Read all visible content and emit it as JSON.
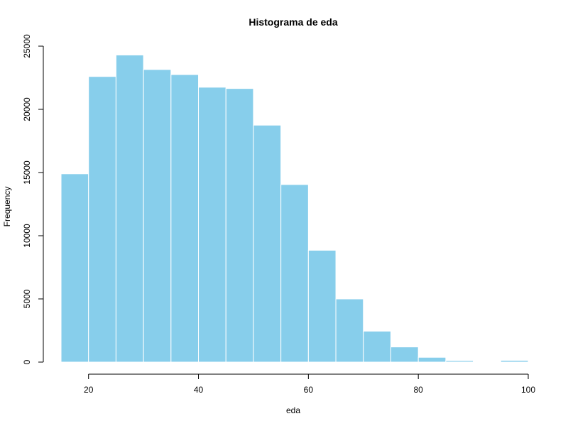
{
  "chart_data": {
    "type": "bar",
    "title": "Histograma de eda",
    "xlabel": "eda",
    "ylabel": "Frequency",
    "bins": [
      {
        "start": 15,
        "end": 20,
        "count": 14900
      },
      {
        "start": 20,
        "end": 25,
        "count": 22600
      },
      {
        "start": 25,
        "end": 30,
        "count": 24300
      },
      {
        "start": 30,
        "end": 35,
        "count": 23150
      },
      {
        "start": 35,
        "end": 40,
        "count": 22750
      },
      {
        "start": 40,
        "end": 45,
        "count": 21750
      },
      {
        "start": 45,
        "end": 50,
        "count": 21650
      },
      {
        "start": 50,
        "end": 55,
        "count": 18750
      },
      {
        "start": 55,
        "end": 60,
        "count": 14050
      },
      {
        "start": 60,
        "end": 65,
        "count": 8850
      },
      {
        "start": 65,
        "end": 70,
        "count": 5000
      },
      {
        "start": 70,
        "end": 75,
        "count": 2450
      },
      {
        "start": 75,
        "end": 80,
        "count": 1200
      },
      {
        "start": 80,
        "end": 85,
        "count": 380
      },
      {
        "start": 85,
        "end": 90,
        "count": 120
      },
      {
        "start": 90,
        "end": 95,
        "count": 20
      },
      {
        "start": 95,
        "end": 100,
        "count": 140
      }
    ],
    "x_ticks": [
      20,
      40,
      60,
      80,
      100
    ],
    "y_ticks": [
      0,
      5000,
      10000,
      15000,
      20000,
      25000
    ],
    "xlim": [
      15,
      100
    ],
    "ylim": [
      0,
      25000
    ],
    "bar_color": "#87ceeb",
    "bar_border_color": "#ffffff",
    "grid": false,
    "legend": "none"
  }
}
